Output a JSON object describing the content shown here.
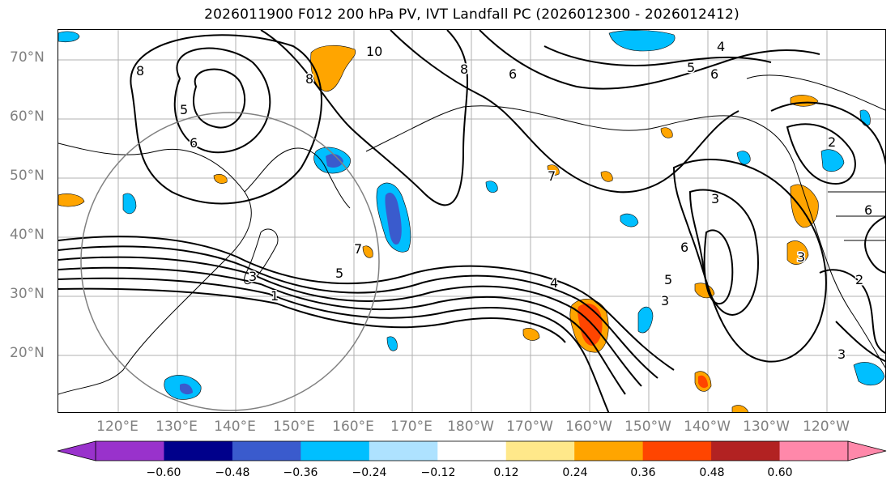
{
  "title": "2026011900 F012 200 hPa PV, IVT Landfall PC (2026012300 - 2026012412)",
  "lat_labels": [
    "70°N",
    "60°N",
    "50°N",
    "40°N",
    "30°N",
    "20°N"
  ],
  "lon_labels": [
    "120°E",
    "130°E",
    "140°E",
    "150°E",
    "160°E",
    "170°E",
    "180°W",
    "170°W",
    "160°W",
    "150°W",
    "140°W",
    "130°W",
    "120°W"
  ],
  "colorbar": {
    "colors": [
      "#9932cc",
      "#00008b",
      "#3a5bcd",
      "#00bfff",
      "#aee2ff",
      "#ffffff",
      "#ffe88a",
      "#ffa500",
      "#ff4500",
      "#b22222",
      "#ff88aa"
    ],
    "tick_labels": [
      "−0.60",
      "−0.48",
      "−0.36",
      "−0.24",
      "−0.12",
      "0.12",
      "0.24",
      "0.36",
      "0.48",
      "0.60"
    ]
  },
  "contour_labels": [
    "8",
    "5",
    "6",
    "8",
    "10",
    "8",
    "6",
    "5",
    "4",
    "6",
    "7",
    "7",
    "3",
    "5",
    "1",
    "4",
    "3",
    "6",
    "5",
    "3",
    "2",
    "3",
    "3",
    "2",
    "6"
  ],
  "legend_colors": {
    "land_outline": "#000000",
    "grid": "#b0b0b0",
    "circle": "#808080"
  }
}
